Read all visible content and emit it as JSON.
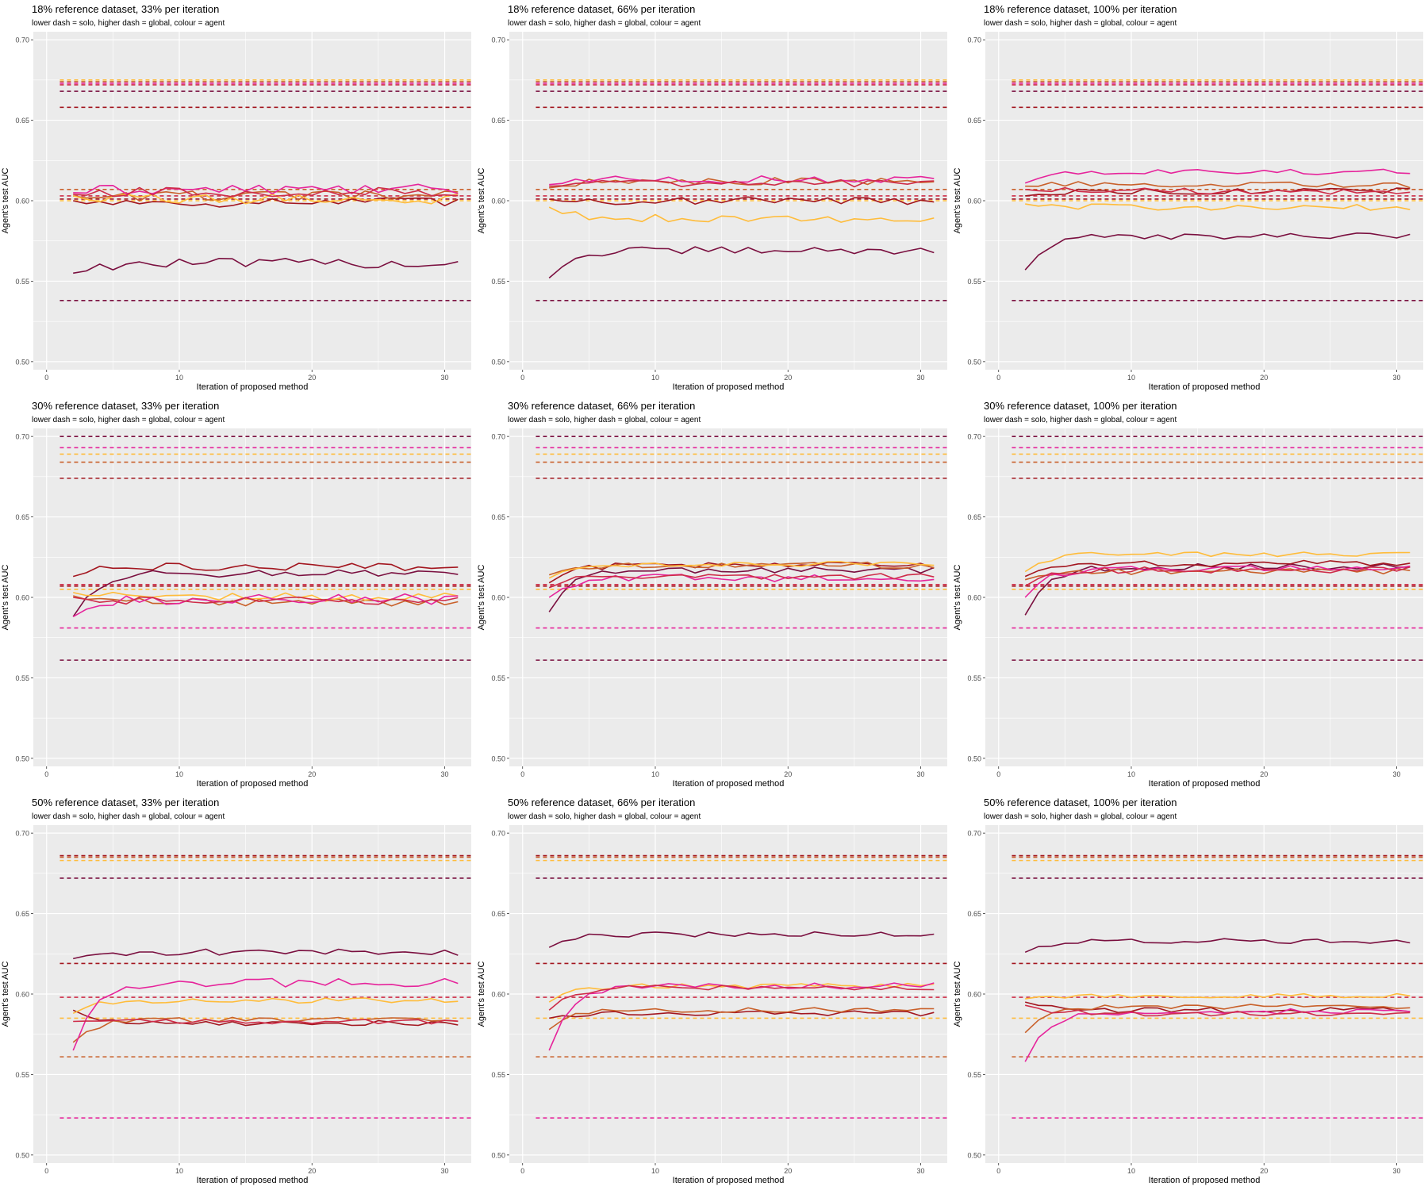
{
  "figure": {
    "subtitle": "lower dash = solo, higher dash = global, colour = agent",
    "xlabel": "Iteration of proposed method",
    "ylabel": "Agent's test AUC",
    "background": "#ebebeb",
    "grid_color": "#ffffff",
    "agent_colors": [
      "#7a0f3f",
      "#a3161f",
      "#c9602a",
      "#ffbc3a",
      "#e6249b",
      "#ce2c48"
    ]
  },
  "chart_data": [
    {
      "type": "line",
      "title": "18% reference dataset, 33% per iteration",
      "ylim": [
        0.495,
        0.705
      ],
      "xlim": [
        -1,
        32
      ],
      "yticks": [
        0.5,
        0.55,
        0.6,
        0.65,
        0.7
      ],
      "xticks": [
        0,
        10,
        20,
        30
      ],
      "x_range": [
        2,
        31
      ],
      "reference_lines": [
        {
          "agent": 3,
          "value": 0.675
        },
        {
          "agent": 2,
          "value": 0.674
        },
        {
          "agent": 4,
          "value": 0.673
        },
        {
          "agent": 5,
          "value": 0.672
        },
        {
          "agent": 0,
          "value": 0.668
        },
        {
          "agent": 1,
          "value": 0.658
        },
        {
          "agent": 2,
          "value": 0.607
        },
        {
          "agent": 5,
          "value": 0.603
        },
        {
          "agent": 1,
          "value": 0.601
        },
        {
          "agent": 3,
          "value": 0.6
        },
        {
          "agent": 0,
          "value": 0.538
        }
      ],
      "series": [
        {
          "agent": 0,
          "start": 0.555,
          "level": 0.561,
          "noise": 0.002
        },
        {
          "agent": 1,
          "start": 0.6,
          "level": 0.599,
          "noise": 0.002
        },
        {
          "agent": 2,
          "start": 0.603,
          "level": 0.603,
          "noise": 0.002
        },
        {
          "agent": 3,
          "start": 0.603,
          "level": 0.601,
          "noise": 0.002
        },
        {
          "agent": 4,
          "start": 0.605,
          "level": 0.607,
          "noise": 0.002
        },
        {
          "agent": 5,
          "start": 0.604,
          "level": 0.605,
          "noise": 0.002
        }
      ]
    },
    {
      "type": "line",
      "title": "18% reference dataset, 66% per iteration",
      "ylim": [
        0.495,
        0.705
      ],
      "xlim": [
        -1,
        32
      ],
      "yticks": [
        0.5,
        0.55,
        0.6,
        0.65,
        0.7
      ],
      "xticks": [
        0,
        10,
        20,
        30
      ],
      "x_range": [
        2,
        31
      ],
      "reference_lines": [
        {
          "agent": 3,
          "value": 0.675
        },
        {
          "agent": 2,
          "value": 0.674
        },
        {
          "agent": 4,
          "value": 0.673
        },
        {
          "agent": 5,
          "value": 0.672
        },
        {
          "agent": 0,
          "value": 0.668
        },
        {
          "agent": 1,
          "value": 0.658
        },
        {
          "agent": 2,
          "value": 0.607
        },
        {
          "agent": 5,
          "value": 0.603
        },
        {
          "agent": 1,
          "value": 0.601
        },
        {
          "agent": 3,
          "value": 0.6
        },
        {
          "agent": 0,
          "value": 0.538
        }
      ],
      "series": [
        {
          "agent": 0,
          "start": 0.552,
          "level": 0.569,
          "noise": 0.0015
        },
        {
          "agent": 1,
          "start": 0.601,
          "level": 0.6,
          "noise": 0.0015
        },
        {
          "agent": 2,
          "start": 0.608,
          "level": 0.612,
          "noise": 0.0015
        },
        {
          "agent": 3,
          "start": 0.596,
          "level": 0.589,
          "noise": 0.0015
        },
        {
          "agent": 4,
          "start": 0.61,
          "level": 0.613,
          "noise": 0.0015
        },
        {
          "agent": 5,
          "start": 0.609,
          "level": 0.611,
          "noise": 0.0015
        }
      ]
    },
    {
      "type": "line",
      "title": "18% reference dataset, 100% per iteration",
      "ylim": [
        0.495,
        0.705
      ],
      "xlim": [
        -1,
        32
      ],
      "yticks": [
        0.5,
        0.55,
        0.6,
        0.65,
        0.7
      ],
      "xticks": [
        0,
        10,
        20,
        30
      ],
      "x_range": [
        2,
        31
      ],
      "reference_lines": [
        {
          "agent": 3,
          "value": 0.675
        },
        {
          "agent": 2,
          "value": 0.674
        },
        {
          "agent": 4,
          "value": 0.673
        },
        {
          "agent": 5,
          "value": 0.672
        },
        {
          "agent": 0,
          "value": 0.668
        },
        {
          "agent": 1,
          "value": 0.658
        },
        {
          "agent": 2,
          "value": 0.607
        },
        {
          "agent": 5,
          "value": 0.603
        },
        {
          "agent": 1,
          "value": 0.601
        },
        {
          "agent": 3,
          "value": 0.6
        },
        {
          "agent": 0,
          "value": 0.538
        }
      ],
      "series": [
        {
          "agent": 0,
          "start": 0.557,
          "level": 0.578,
          "noise": 0.0012
        },
        {
          "agent": 1,
          "start": 0.603,
          "level": 0.606,
          "noise": 0.0012
        },
        {
          "agent": 2,
          "start": 0.609,
          "level": 0.61,
          "noise": 0.0012
        },
        {
          "agent": 3,
          "start": 0.598,
          "level": 0.596,
          "noise": 0.0012
        },
        {
          "agent": 4,
          "start": 0.611,
          "level": 0.618,
          "noise": 0.0012
        },
        {
          "agent": 5,
          "start": 0.607,
          "level": 0.606,
          "noise": 0.0012
        }
      ]
    },
    {
      "type": "line",
      "title": "30% reference dataset, 33% per iteration",
      "ylim": [
        0.495,
        0.705
      ],
      "xlim": [
        -1,
        32
      ],
      "yticks": [
        0.5,
        0.55,
        0.6,
        0.65,
        0.7
      ],
      "xticks": [
        0,
        10,
        20,
        30
      ],
      "x_range": [
        2,
        31
      ],
      "reference_lines": [
        {
          "agent": 0,
          "value": 0.7
        },
        {
          "agent": 4,
          "value": 0.693
        },
        {
          "agent": 3,
          "value": 0.689
        },
        {
          "agent": 2,
          "value": 0.684
        },
        {
          "agent": 1,
          "value": 0.674
        },
        {
          "agent": 5,
          "value": 0.608
        },
        {
          "agent": 1,
          "value": 0.607
        },
        {
          "agent": 3,
          "value": 0.605
        },
        {
          "agent": 4,
          "value": 0.581
        },
        {
          "agent": 0,
          "value": 0.561
        }
      ],
      "series": [
        {
          "agent": 0,
          "start": 0.588,
          "level": 0.615,
          "noise": 0.0015
        },
        {
          "agent": 1,
          "start": 0.613,
          "level": 0.619,
          "noise": 0.0015
        },
        {
          "agent": 2,
          "start": 0.601,
          "level": 0.597,
          "noise": 0.0015
        },
        {
          "agent": 3,
          "start": 0.603,
          "level": 0.6,
          "noise": 0.0018
        },
        {
          "agent": 4,
          "start": 0.588,
          "level": 0.599,
          "noise": 0.0022
        },
        {
          "agent": 5,
          "start": 0.6,
          "level": 0.598,
          "noise": 0.0015
        }
      ]
    },
    {
      "type": "line",
      "title": "30% reference dataset, 66% per iteration",
      "ylim": [
        0.495,
        0.705
      ],
      "xlim": [
        -1,
        32
      ],
      "yticks": [
        0.5,
        0.55,
        0.6,
        0.65,
        0.7
      ],
      "xticks": [
        0,
        10,
        20,
        30
      ],
      "x_range": [
        2,
        31
      ],
      "reference_lines": [
        {
          "agent": 0,
          "value": 0.7
        },
        {
          "agent": 4,
          "value": 0.693
        },
        {
          "agent": 3,
          "value": 0.689
        },
        {
          "agent": 2,
          "value": 0.684
        },
        {
          "agent": 1,
          "value": 0.674
        },
        {
          "agent": 5,
          "value": 0.608
        },
        {
          "agent": 1,
          "value": 0.607
        },
        {
          "agent": 3,
          "value": 0.605
        },
        {
          "agent": 4,
          "value": 0.581
        },
        {
          "agent": 0,
          "value": 0.561
        }
      ],
      "series": [
        {
          "agent": 0,
          "start": 0.591,
          "level": 0.617,
          "noise": 0.0012
        },
        {
          "agent": 1,
          "start": 0.609,
          "level": 0.62,
          "noise": 0.0012
        },
        {
          "agent": 2,
          "start": 0.614,
          "level": 0.62,
          "noise": 0.0012
        },
        {
          "agent": 3,
          "start": 0.612,
          "level": 0.621,
          "noise": 0.0012
        },
        {
          "agent": 4,
          "start": 0.6,
          "level": 0.612,
          "noise": 0.0015
        },
        {
          "agent": 5,
          "start": 0.606,
          "level": 0.613,
          "noise": 0.0012
        }
      ]
    },
    {
      "type": "line",
      "title": "30% reference dataset, 100% per iteration",
      "ylim": [
        0.495,
        0.705
      ],
      "xlim": [
        -1,
        32
      ],
      "yticks": [
        0.5,
        0.55,
        0.6,
        0.65,
        0.7
      ],
      "xticks": [
        0,
        10,
        20,
        30
      ],
      "x_range": [
        2,
        31
      ],
      "reference_lines": [
        {
          "agent": 0,
          "value": 0.7
        },
        {
          "agent": 4,
          "value": 0.693
        },
        {
          "agent": 3,
          "value": 0.689
        },
        {
          "agent": 2,
          "value": 0.684
        },
        {
          "agent": 1,
          "value": 0.674
        },
        {
          "agent": 5,
          "value": 0.608
        },
        {
          "agent": 1,
          "value": 0.607
        },
        {
          "agent": 3,
          "value": 0.605
        },
        {
          "agent": 4,
          "value": 0.581
        },
        {
          "agent": 0,
          "value": 0.561
        }
      ],
      "series": [
        {
          "agent": 0,
          "start": 0.589,
          "level": 0.619,
          "noise": 0.0012
        },
        {
          "agent": 1,
          "start": 0.613,
          "level": 0.621,
          "noise": 0.0012
        },
        {
          "agent": 2,
          "start": 0.611,
          "level": 0.616,
          "noise": 0.0012
        },
        {
          "agent": 3,
          "start": 0.616,
          "level": 0.627,
          "noise": 0.001
        },
        {
          "agent": 4,
          "start": 0.6,
          "level": 0.618,
          "noise": 0.0012
        },
        {
          "agent": 5,
          "start": 0.607,
          "level": 0.617,
          "noise": 0.0012
        }
      ]
    },
    {
      "type": "line",
      "title": "50% reference dataset, 33% per iteration",
      "ylim": [
        0.495,
        0.705
      ],
      "xlim": [
        -1,
        32
      ],
      "yticks": [
        0.5,
        0.55,
        0.6,
        0.65,
        0.7
      ],
      "xticks": [
        0,
        10,
        20,
        30
      ],
      "x_range": [
        2,
        31
      ],
      "reference_lines": [
        {
          "agent": 1,
          "value": 0.686
        },
        {
          "agent": 2,
          "value": 0.685
        },
        {
          "agent": 3,
          "value": 0.683
        },
        {
          "agent": 0,
          "value": 0.672
        },
        {
          "agent": 1,
          "value": 0.619
        },
        {
          "agent": 5,
          "value": 0.598
        },
        {
          "agent": 3,
          "value": 0.585
        },
        {
          "agent": 2,
          "value": 0.561
        },
        {
          "agent": 4,
          "value": 0.523
        }
      ],
      "series": [
        {
          "agent": 0,
          "start": 0.622,
          "level": 0.626,
          "noise": 0.0012
        },
        {
          "agent": 1,
          "start": 0.59,
          "level": 0.582,
          "noise": 0.001
        },
        {
          "agent": 2,
          "start": 0.57,
          "level": 0.584,
          "noise": 0.001
        },
        {
          "agent": 3,
          "start": 0.588,
          "level": 0.596,
          "noise": 0.001
        },
        {
          "agent": 4,
          "start": 0.565,
          "level": 0.607,
          "noise": 0.0018
        },
        {
          "agent": 5,
          "start": 0.583,
          "level": 0.583,
          "noise": 0.001
        }
      ]
    },
    {
      "type": "line",
      "title": "50% reference dataset, 66% per iteration",
      "ylim": [
        0.495,
        0.705
      ],
      "xlim": [
        -1,
        32
      ],
      "yticks": [
        0.5,
        0.55,
        0.6,
        0.65,
        0.7
      ],
      "xticks": [
        0,
        10,
        20,
        30
      ],
      "x_range": [
        2,
        31
      ],
      "reference_lines": [
        {
          "agent": 1,
          "value": 0.686
        },
        {
          "agent": 2,
          "value": 0.685
        },
        {
          "agent": 3,
          "value": 0.683
        },
        {
          "agent": 0,
          "value": 0.672
        },
        {
          "agent": 1,
          "value": 0.619
        },
        {
          "agent": 5,
          "value": 0.598
        },
        {
          "agent": 3,
          "value": 0.585
        },
        {
          "agent": 2,
          "value": 0.561
        },
        {
          "agent": 4,
          "value": 0.523
        }
      ],
      "series": [
        {
          "agent": 0,
          "start": 0.629,
          "level": 0.637,
          "noise": 0.001
        },
        {
          "agent": 1,
          "start": 0.585,
          "level": 0.588,
          "noise": 0.001
        },
        {
          "agent": 2,
          "start": 0.578,
          "level": 0.59,
          "noise": 0.001
        },
        {
          "agent": 3,
          "start": 0.595,
          "level": 0.605,
          "noise": 0.001
        },
        {
          "agent": 4,
          "start": 0.565,
          "level": 0.605,
          "noise": 0.0012
        },
        {
          "agent": 5,
          "start": 0.59,
          "level": 0.604,
          "noise": 0.001
        }
      ]
    },
    {
      "type": "line",
      "title": "50% reference dataset, 100% per iteration",
      "ylim": [
        0.495,
        0.705
      ],
      "xlim": [
        -1,
        32
      ],
      "yticks": [
        0.5,
        0.55,
        0.6,
        0.65,
        0.7
      ],
      "xticks": [
        0,
        10,
        20,
        30
      ],
      "x_range": [
        2,
        31
      ],
      "reference_lines": [
        {
          "agent": 1,
          "value": 0.686
        },
        {
          "agent": 2,
          "value": 0.685
        },
        {
          "agent": 3,
          "value": 0.683
        },
        {
          "agent": 0,
          "value": 0.672
        },
        {
          "agent": 1,
          "value": 0.619
        },
        {
          "agent": 5,
          "value": 0.598
        },
        {
          "agent": 3,
          "value": 0.585
        },
        {
          "agent": 2,
          "value": 0.561
        },
        {
          "agent": 4,
          "value": 0.523
        }
      ],
      "series": [
        {
          "agent": 0,
          "start": 0.626,
          "level": 0.633,
          "noise": 0.001
        },
        {
          "agent": 1,
          "start": 0.595,
          "level": 0.59,
          "noise": 0.001
        },
        {
          "agent": 2,
          "start": 0.576,
          "level": 0.592,
          "noise": 0.001
        },
        {
          "agent": 3,
          "start": 0.597,
          "level": 0.599,
          "noise": 0.0008
        },
        {
          "agent": 4,
          "start": 0.558,
          "level": 0.589,
          "noise": 0.0012
        },
        {
          "agent": 5,
          "start": 0.593,
          "level": 0.588,
          "noise": 0.001
        }
      ]
    }
  ]
}
